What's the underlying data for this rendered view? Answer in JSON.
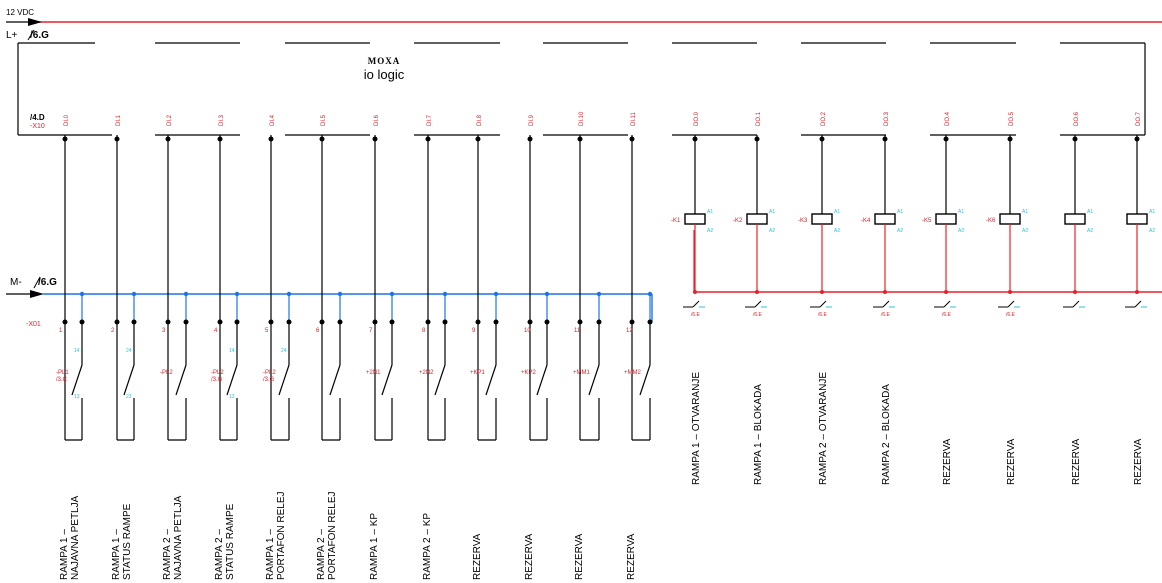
{
  "power": {
    "supply_label": "12 VDC",
    "positive_rail": "L+",
    "positive_ref": "/6.G",
    "negative_rail": "M-",
    "negative_ref": "/6.G"
  },
  "module": {
    "brand": "MOXA",
    "name": "io logic",
    "page_ref": "/4.D",
    "terminal_ref": "-X10"
  },
  "terminal_strip": {
    "name": "-X01"
  },
  "colors": {
    "supply_rail": "#e8202a",
    "ground_rail": "#1e73e8",
    "wire": "#000000",
    "tag_red": "#e0202a",
    "tag_cyan": "#30c0d8"
  },
  "inputs": [
    {
      "pin": "DI.0",
      "terminal": "1",
      "device": "-PL1\n/3.C",
      "contact_top": "14",
      "contact_bot": "13",
      "label_1": "RAMPA 1 –",
      "label_2": "NAJAVNA PETLJA"
    },
    {
      "pin": "DI.1",
      "terminal": "2",
      "device": "",
      "contact_top": "24",
      "contact_bot": "23",
      "label_1": "RAMPA 1 –",
      "label_2": "STATUS RAMPE"
    },
    {
      "pin": "DI.2",
      "terminal": "3",
      "device": "-PL2",
      "contact_top": "",
      "contact_bot": "",
      "label_1": "RAMPA 2 –",
      "label_2": "NAJAVNA PETLJA"
    },
    {
      "pin": "DI.3",
      "terminal": "4",
      "device": "-PL2\n/3.G",
      "contact_top": "14",
      "contact_bot": "13",
      "label_1": "RAMPA 2 –",
      "label_2": "STATUS RAMPE"
    },
    {
      "pin": "DI.4",
      "terminal": "5",
      "device": "-PL2\n/3.G",
      "contact_top": "24",
      "contact_bot": "",
      "label_1": "RAMPA 1 –",
      "label_2": "PORTAFON RELEJ"
    },
    {
      "pin": "DI.5",
      "terminal": "6",
      "device": "",
      "contact_top": "",
      "contact_bot": "",
      "label_1": "RAMPA 2 –",
      "label_2": "PORTAFON RELEJ"
    },
    {
      "pin": "DI.6",
      "terminal": "7",
      "device": "+2N1",
      "contact_top": "",
      "contact_bot": "",
      "label_1": "RAMPA 1 – KP",
      "label_2": ""
    },
    {
      "pin": "DI.7",
      "terminal": "8",
      "device": "+2N2",
      "contact_top": "",
      "contact_bot": "",
      "label_1": "RAMPA 2 – KP",
      "label_2": ""
    },
    {
      "pin": "DI.8",
      "terminal": "9",
      "device": "+KP1",
      "contact_top": "",
      "contact_bot": "",
      "label_1": "REZERVA",
      "label_2": ""
    },
    {
      "pin": "DI.9",
      "terminal": "10",
      "device": "+KP2",
      "contact_top": "",
      "contact_bot": "",
      "label_1": "REZERVA",
      "label_2": ""
    },
    {
      "pin": "DI.10",
      "terminal": "11",
      "device": "+MM1",
      "contact_top": "",
      "contact_bot": "",
      "label_1": "REZERVA",
      "label_2": ""
    },
    {
      "pin": "DI.11",
      "terminal": "12",
      "device": "+MM2",
      "contact_top": "",
      "contact_bot": "",
      "label_1": "REZERVA",
      "label_2": ""
    }
  ],
  "outputs": [
    {
      "pin": "DO.0",
      "relay": "-K1",
      "coil_top": "A1",
      "coil_bot": "A2",
      "contact_ref": "/6.E",
      "label": "RAMPA 1 – OTVARANJE"
    },
    {
      "pin": "DO.1",
      "relay": "-K2",
      "coil_top": "A1",
      "coil_bot": "A2",
      "contact_ref": "/6.E",
      "label": "RAMPA 1 – BLOKADA"
    },
    {
      "pin": "DO.2",
      "relay": "-K3",
      "coil_top": "A1",
      "coil_bot": "A2",
      "contact_ref": "/6.E",
      "label": "RAMPA 2 – OTVARANJE"
    },
    {
      "pin": "DO.3",
      "relay": "-K4",
      "coil_top": "A1",
      "coil_bot": "A2",
      "contact_ref": "/6.E",
      "label": "RAMPA 2 – BLOKADA"
    },
    {
      "pin": "DO.4",
      "relay": "-K5",
      "coil_top": "A1",
      "coil_bot": "A2",
      "contact_ref": "/6.E",
      "label": "REZERVA"
    },
    {
      "pin": "DO.5",
      "relay": "-K6",
      "coil_top": "A1",
      "coil_bot": "A2",
      "contact_ref": "/6.E",
      "label": "REZERVA"
    },
    {
      "pin": "DO.6",
      "relay": "",
      "coil_top": "A1",
      "coil_bot": "A2",
      "contact_ref": "",
      "label": "REZERVA"
    },
    {
      "pin": "DO.7",
      "relay": "",
      "coil_top": "A1",
      "coil_bot": "A2",
      "contact_ref": "",
      "label": "REZERVA"
    }
  ]
}
